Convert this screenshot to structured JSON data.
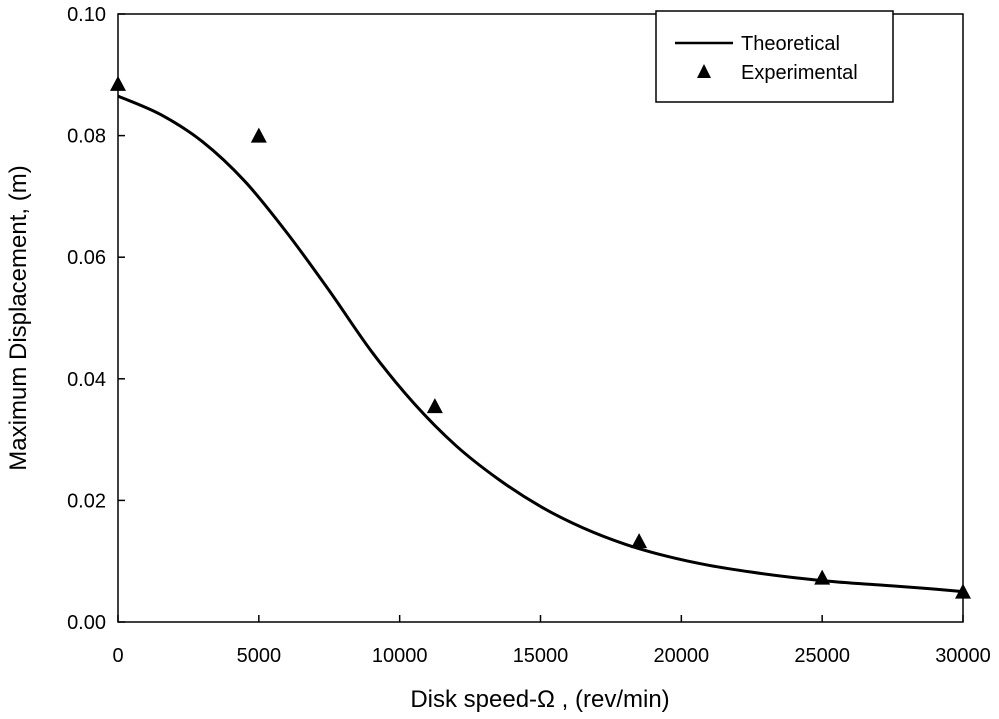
{
  "chart_data": {
    "type": "line",
    "xlabel": "Disk speed-Ω , (rev/min)",
    "ylabel": "Maximum Displacement, (m)",
    "xlim": [
      0,
      30000
    ],
    "ylim": [
      0,
      0.1
    ],
    "x_ticks": [
      "0",
      "5000",
      "10000",
      "15000",
      "20000",
      "25000",
      "30000"
    ],
    "y_ticks": [
      "0.00",
      "0.02",
      "0.04",
      "0.06",
      "0.08",
      "0.10"
    ],
    "grid": false,
    "legend_position": "top-right",
    "series": [
      {
        "name": "Theoretical",
        "style": "line",
        "color": "#000000",
        "x": [
          0,
          1500,
          3000,
          4500,
          6000,
          7500,
          9000,
          10500,
          12000,
          13500,
          15000,
          16500,
          18000,
          19500,
          21000,
          22500,
          24000,
          25500,
          27000,
          28500,
          30000
        ],
        "y": [
          0.0865,
          0.0835,
          0.079,
          0.0725,
          0.064,
          0.0545,
          0.0445,
          0.036,
          0.029,
          0.0235,
          0.019,
          0.0155,
          0.0128,
          0.0108,
          0.0093,
          0.0082,
          0.0073,
          0.0066,
          0.0061,
          0.0056,
          0.005
        ]
      },
      {
        "name": "Experimental",
        "style": "marker-triangle",
        "color": "#000000",
        "x": [
          0,
          5000,
          11250,
          18500,
          25000,
          30000
        ],
        "y": [
          0.0885,
          0.08,
          0.0355,
          0.0133,
          0.0073,
          0.005
        ]
      }
    ]
  }
}
